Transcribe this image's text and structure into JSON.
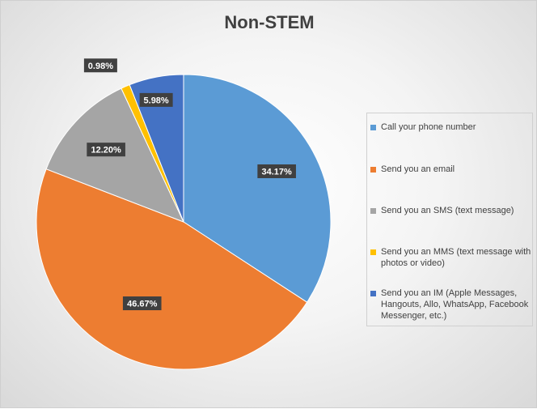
{
  "chart_data": {
    "type": "pie",
    "title": "Non-STEM",
    "categories": [
      "Call your phone number",
      "Send you an email",
      "Send you an SMS (text message)",
      "Send you an MMS (text message with photos or video)",
      "Send you an IM (Apple Messages, Hangouts, Allo, WhatsApp, Facebook Messenger, etc.)"
    ],
    "values": [
      34.17,
      46.67,
      12.2,
      0.98,
      5.98
    ],
    "data_labels": [
      "34.17%",
      "46.67%",
      "12.20%",
      "0.98%",
      "5.98%"
    ],
    "colors": [
      "#5b9bd5",
      "#ed7d31",
      "#a5a5a5",
      "#ffc000",
      "#4472c4"
    ],
    "legend_position": "right",
    "start_angle": "12 o'clock, clockwise"
  }
}
